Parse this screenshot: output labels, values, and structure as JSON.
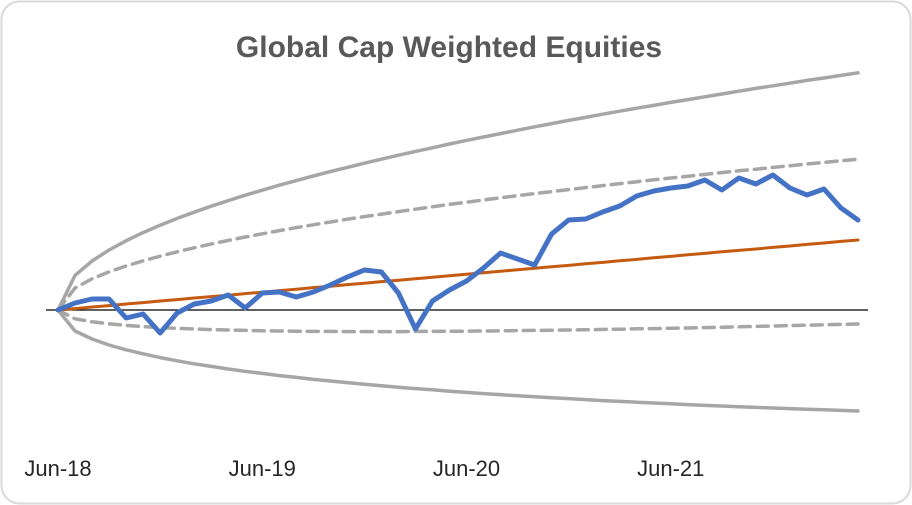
{
  "chart_data": {
    "type": "line",
    "title": "Global Cap Weighted Equities",
    "categories": [
      "Jun-18",
      null,
      null,
      null,
      null,
      null,
      null,
      null,
      null,
      null,
      null,
      null,
      "Jun-19",
      null,
      null,
      null,
      null,
      null,
      null,
      null,
      null,
      null,
      null,
      null,
      "Jun-20",
      null,
      null,
      null,
      null,
      null,
      null,
      null,
      null,
      null,
      null,
      null,
      "Jun-21",
      null,
      null,
      null,
      null,
      null,
      null,
      null,
      null,
      null,
      null,
      null
    ],
    "ylim": [
      -60,
      130
    ],
    "series": [
      {
        "color": "#a6a6a6",
        "dashed": false,
        "values": [
          0,
          17.3,
          24.5,
          30.0,
          34.6,
          38.7,
          42.4,
          45.8,
          48.9,
          51.9,
          54.7,
          57.4,
          59.9,
          62.4,
          64.7,
          67.0,
          69.2,
          71.3,
          73.4,
          75.4,
          77.4,
          79.3,
          81.1,
          83.0,
          84.8,
          86.5,
          88.2,
          89.9,
          91.6,
          93.2,
          94.8,
          96.3,
          97.9,
          99.4,
          100.9,
          102.3,
          103.8,
          105.2,
          106.6,
          108.0,
          109.4,
          110.8,
          112.1,
          113.4,
          114.8,
          116.0,
          117.3,
          118.6
        ]
      },
      {
        "color": "#a6a6a6",
        "dashed": false,
        "values": [
          0,
          -10.5,
          -14.5,
          -17.5,
          -19.9,
          -21.9,
          -23.8,
          -25.4,
          -26.9,
          -28.2,
          -29.5,
          -30.7,
          -31.7,
          -32.8,
          -33.7,
          -34.7,
          -35.5,
          -36.3,
          -37.1,
          -37.9,
          -38.6,
          -39.3,
          -39.9,
          -40.6,
          -41.2,
          -41.8,
          -42.3,
          -42.9,
          -43.4,
          -43.9,
          -44.3,
          -44.8,
          -45.3,
          -45.7,
          -46.1,
          -46.5,
          -46.9,
          -47.3,
          -47.7,
          -48.0,
          -48.4,
          -48.7,
          -49.0,
          -49.3,
          -49.6,
          -49.9,
          -50.2,
          -50.5
        ]
      },
      {
        "color": "#a6a6a6",
        "dashed": true,
        "values": [
          0,
          11,
          15.6,
          19.1,
          22,
          24.6,
          26.9,
          29.1,
          31.1,
          33,
          34.8,
          36.5,
          38.1,
          39.7,
          41.2,
          42.6,
          44,
          45.4,
          46.7,
          47.9,
          49.2,
          50.4,
          51.6,
          52.8,
          53.9,
          55,
          56.1,
          57.2,
          58.2,
          59.2,
          60.2,
          61.2,
          62.2,
          63.2,
          64.1,
          65.1,
          66,
          66.9,
          67.8,
          68.7,
          69.6,
          70.4,
          71.3,
          72.1,
          73.0,
          73.8,
          74.6,
          75.4
        ]
      },
      {
        "color": "#a6a6a6",
        "dashed": true,
        "values": [
          0,
          -4.4,
          -5.9,
          -6.9,
          -7.7,
          -8.3,
          -8.8,
          -9.2,
          -9.5,
          -9.8,
          -10.0,
          -10.2,
          -10.4,
          -10.5,
          -10.6,
          -10.7,
          -10.7,
          -10.8,
          -10.8,
          -10.8,
          -10.8,
          -10.7,
          -10.7,
          -10.6,
          -10.6,
          -10.5,
          -10.4,
          -10.3,
          -10.2,
          -10.1,
          -10.0,
          -9.9,
          -9.7,
          -9.6,
          -9.4,
          -9.3,
          -9.1,
          -9.0,
          -8.8,
          -8.6,
          -8.4,
          -8.2,
          -8.0,
          -7.8,
          -7.6,
          -7.4,
          -7.2,
          -7.0
        ]
      },
      {
        "color": "#c55a11",
        "dashed": false,
        "values": [
          0,
          0.7,
          1.5,
          2.2,
          3.0,
          3.7,
          4.5,
          5.2,
          6.0,
          6.7,
          7.4,
          8.2,
          8.9,
          9.7,
          10.4,
          11.2,
          11.9,
          12.7,
          13.4,
          14.2,
          14.9,
          15.6,
          16.4,
          17.1,
          17.9,
          18.6,
          19.4,
          20.1,
          20.9,
          21.6,
          22.3,
          23.1,
          23.8,
          24.6,
          25.3,
          26.1,
          26.8,
          27.6,
          28.3,
          29.1,
          29.8,
          30.5,
          31.3,
          32.0,
          32.8,
          33.5,
          34.3,
          35.0
        ]
      },
      {
        "color": "#4472c4",
        "dashed": false,
        "values": [
          0,
          3.5,
          5.5,
          5.5,
          -4,
          -2,
          -11.5,
          -1.5,
          3,
          4.5,
          7.5,
          1,
          8.5,
          9,
          6.5,
          9,
          12.5,
          16.5,
          20,
          19,
          8.5,
          -9.5,
          4.5,
          10,
          14.5,
          21,
          28.5,
          25.5,
          22.5,
          38,
          45,
          45.5,
          49,
          52,
          57,
          59.5,
          61,
          62,
          65,
          60,
          66,
          63,
          67.5,
          61,
          57.5,
          60.5,
          51,
          45
        ]
      }
    ]
  }
}
